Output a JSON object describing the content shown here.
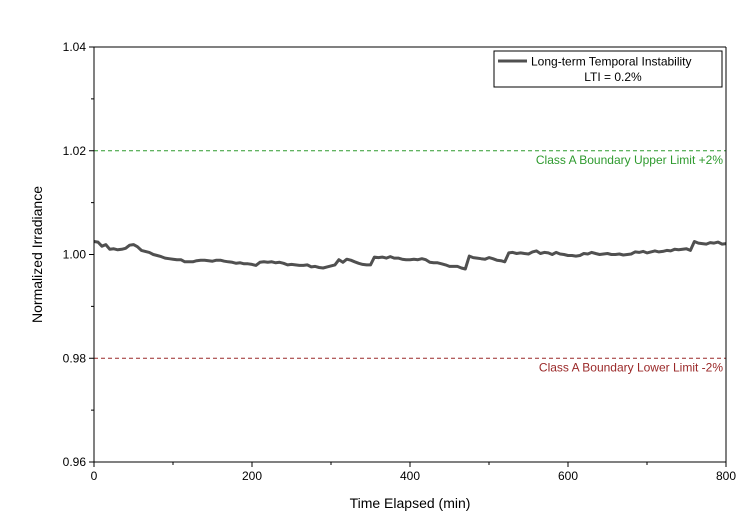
{
  "chart_data": {
    "type": "line",
    "title": "",
    "xlabel": "Time Elapsed (min)",
    "ylabel": "Normalized Irradiance",
    "xlim": [
      0,
      800
    ],
    "ylim": [
      0.96,
      1.04
    ],
    "x_ticks": [
      0,
      200,
      400,
      600,
      800
    ],
    "x_tick_labels": [
      "0",
      "200",
      "400",
      "600",
      "800"
    ],
    "y_ticks": [
      0.96,
      0.98,
      1.0,
      1.02,
      1.04
    ],
    "y_tick_labels": [
      "0.96",
      "0.98",
      "1.00",
      "1.02",
      "1.04"
    ],
    "grid": false,
    "legend": {
      "position": "top-right",
      "entries": [
        "Long-term Temporal Instability"
      ],
      "note": "LTI = 0.2%"
    },
    "reference_lines": [
      {
        "y": 1.02,
        "label": "Class A Boundary Upper Limit +2%",
        "color": "#2e9a2e"
      },
      {
        "y": 0.98,
        "label": "Class A Boundary Lower Limit -2%",
        "color": "#9a2828"
      }
    ],
    "series": [
      {
        "name": "Long-term Temporal Instability",
        "color": "#505050",
        "x": [
          0,
          5,
          10,
          15,
          20,
          25,
          30,
          35,
          40,
          45,
          50,
          55,
          60,
          65,
          70,
          75,
          80,
          85,
          90,
          95,
          100,
          105,
          110,
          115,
          120,
          125,
          130,
          135,
          140,
          145,
          150,
          155,
          160,
          165,
          170,
          175,
          180,
          185,
          190,
          195,
          200,
          205,
          210,
          215,
          220,
          225,
          230,
          235,
          240,
          245,
          250,
          255,
          260,
          265,
          270,
          275,
          280,
          285,
          290,
          295,
          300,
          305,
          310,
          315,
          320,
          325,
          330,
          335,
          340,
          345,
          350,
          355,
          360,
          365,
          370,
          375,
          380,
          385,
          390,
          395,
          400,
          405,
          410,
          415,
          420,
          425,
          430,
          435,
          440,
          445,
          450,
          455,
          460,
          465,
          470,
          475,
          480,
          485,
          490,
          495,
          500,
          505,
          510,
          515,
          520,
          525,
          530,
          535,
          540,
          545,
          550,
          555,
          560,
          565,
          570,
          575,
          580,
          585,
          590,
          595,
          600,
          605,
          610,
          615,
          620,
          625,
          630,
          635,
          640,
          645,
          650,
          655,
          660,
          665,
          670,
          675,
          680,
          685,
          690,
          695,
          700,
          705,
          710,
          715,
          720,
          725,
          730,
          735,
          740,
          745,
          750,
          755,
          760,
          765,
          770,
          775,
          780,
          785,
          790,
          795,
          800
        ],
        "y": [
          1.0025,
          1.0024,
          1.0016,
          1.0019,
          1.001,
          1.0011,
          1.0009,
          1.001,
          1.0012,
          1.0018,
          1.0019,
          1.0015,
          1.0008,
          1.0006,
          1.0004,
          1.0,
          0.9998,
          0.9996,
          0.9993,
          0.9992,
          0.9991,
          0.999,
          0.999,
          0.9986,
          0.9986,
          0.9986,
          0.9988,
          0.9989,
          0.9989,
          0.9988,
          0.9987,
          0.9989,
          0.9989,
          0.9987,
          0.9986,
          0.9985,
          0.9983,
          0.9984,
          0.9982,
          0.9982,
          0.9981,
          0.9979,
          0.9985,
          0.9986,
          0.9985,
          0.9986,
          0.9984,
          0.9985,
          0.9983,
          0.998,
          0.9981,
          0.998,
          0.9979,
          0.9979,
          0.998,
          0.9976,
          0.9977,
          0.9975,
          0.9974,
          0.9976,
          0.9978,
          0.998,
          0.999,
          0.9985,
          0.9991,
          0.9989,
          0.9986,
          0.9983,
          0.9981,
          0.998,
          0.998,
          0.9995,
          0.9994,
          0.9995,
          0.9993,
          0.9996,
          0.9993,
          0.9993,
          0.9991,
          0.999,
          0.999,
          0.9991,
          0.999,
          0.9992,
          0.999,
          0.9985,
          0.9984,
          0.9984,
          0.9982,
          0.998,
          0.9977,
          0.9977,
          0.9977,
          0.9974,
          0.9972,
          0.9997,
          0.9994,
          0.9993,
          0.9992,
          0.9991,
          0.9994,
          0.9992,
          0.9989,
          0.9988,
          0.9986,
          1.0003,
          1.0004,
          1.0002,
          1.0003,
          1.0002,
          1.0001,
          1.0005,
          1.0007,
          1.0002,
          1.0004,
          1.0003,
          1.0,
          1.0004,
          1.0001,
          1.0,
          0.9998,
          0.9998,
          0.9997,
          0.9998,
          1.0002,
          1.0001,
          1.0004,
          1.0002,
          1.0,
          1.0001,
          1.0002,
          1.0,
          1.0,
          1.0001,
          0.9999,
          1.0,
          1.0001,
          1.0005,
          1.0004,
          1.0006,
          1.0003,
          1.0005,
          1.0007,
          1.0005,
          1.0006,
          1.0008,
          1.0007,
          1.001,
          1.0009,
          1.001,
          1.0011,
          1.0008,
          1.0025,
          1.0022,
          1.0021,
          1.002,
          1.0023,
          1.0022,
          1.0024,
          1.002,
          1.0021
        ]
      }
    ]
  }
}
